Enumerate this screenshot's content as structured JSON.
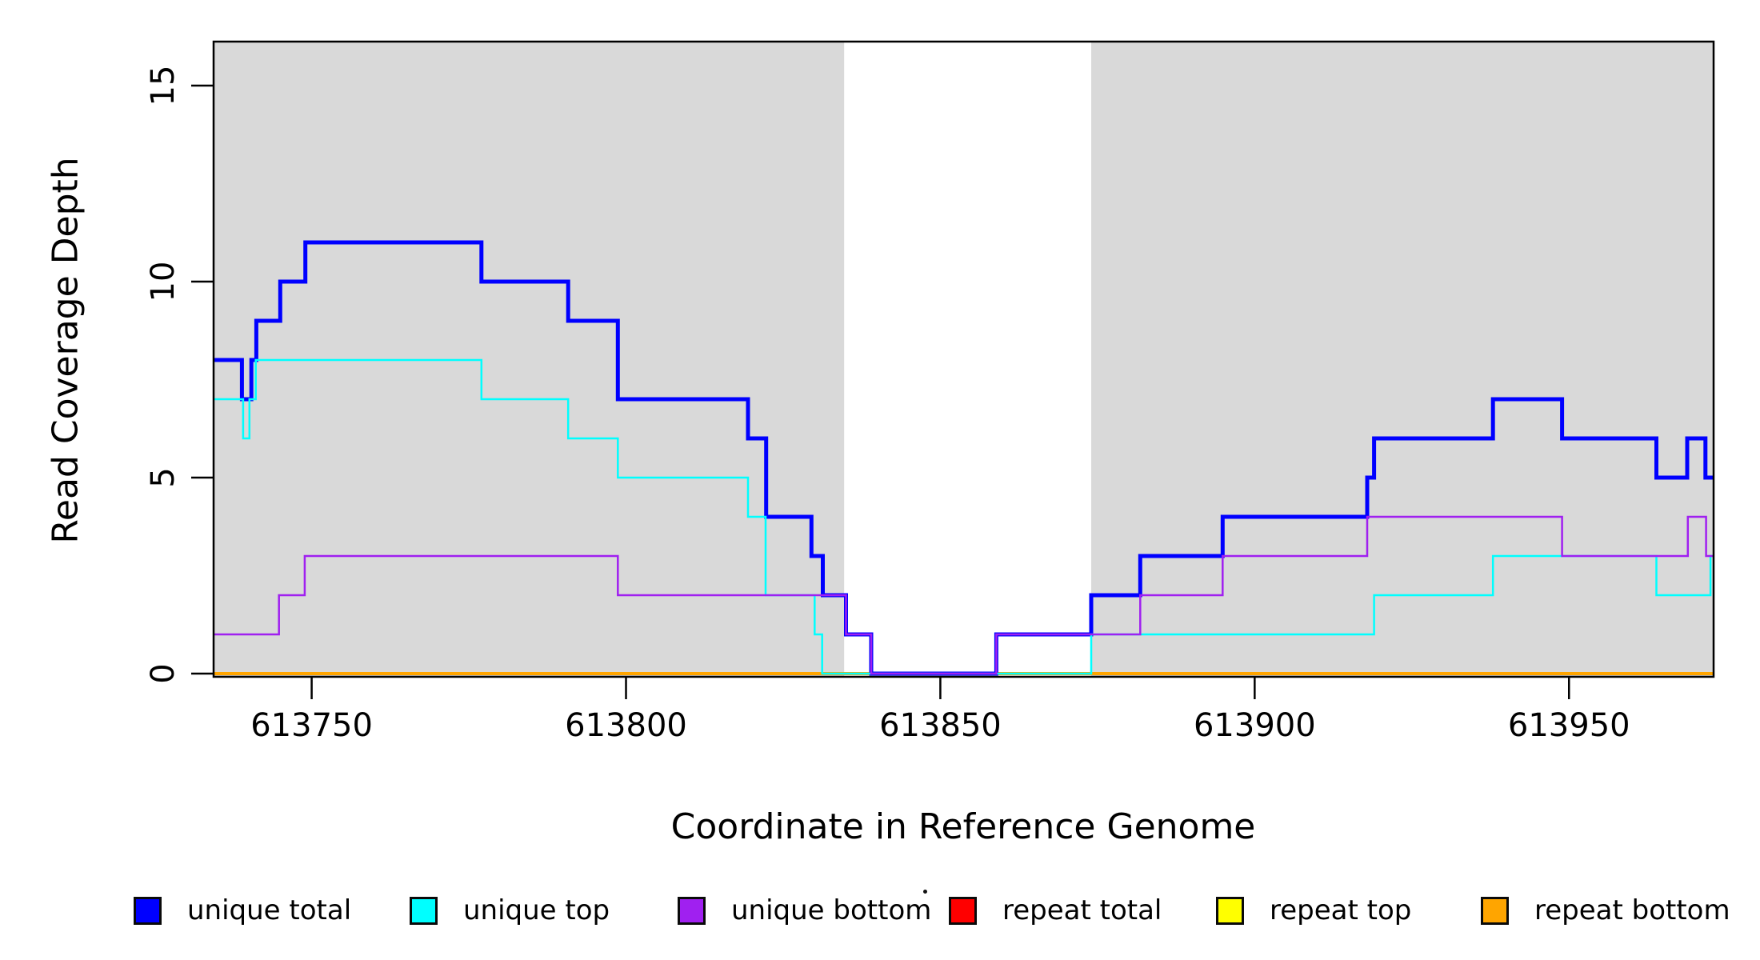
{
  "chart_data": {
    "type": "line",
    "subtype": "step-coverage-plot",
    "title": "",
    "xlabel": "Coordinate in Reference Genome",
    "ylabel": "Read Coverage Depth",
    "x_domain": [
      613734.4,
      613973.0
    ],
    "y_domain": [
      0,
      16.2
    ],
    "grid": "off",
    "x_ticks": [
      {
        "value": 613750,
        "label": "613750"
      },
      {
        "value": 613800,
        "label": "613800"
      },
      {
        "value": 613850,
        "label": "613850"
      },
      {
        "value": 613900,
        "label": "613900"
      },
      {
        "value": 613950,
        "label": "613950"
      }
    ],
    "y_ticks": [
      {
        "value": 0,
        "label": "0"
      },
      {
        "value": 5,
        "label": "5"
      },
      {
        "value": 10,
        "label": "10"
      },
      {
        "value": 15,
        "label": "15"
      }
    ],
    "shaded_regions": {
      "color": "#d9d9d9",
      "note": "unique-mappability regions; white gap is repeat region",
      "ranges": [
        [
          613734.4,
          613834.7
        ],
        [
          613874.0,
          613973.0
        ]
      ]
    },
    "series_draw_order": [
      {
        "name": "repeat total",
        "color": "#ff0000",
        "width": 3,
        "steps": [
          [
            613734.4,
            0
          ]
        ]
      },
      {
        "name": "repeat top",
        "color": "#ffff00",
        "width": 3,
        "steps": [
          [
            613734.4,
            0
          ]
        ]
      },
      {
        "name": "repeat bottom",
        "color": "#ffa500",
        "width": 4,
        "steps": [
          [
            613734.4,
            0
          ]
        ]
      },
      {
        "name": "unique total",
        "color": "#0000ff",
        "width": 5,
        "steps": [
          [
            613734.4,
            8
          ],
          [
            613738.9,
            7
          ],
          [
            613740.4,
            8
          ],
          [
            613741.2,
            9
          ],
          [
            613745,
            10
          ],
          [
            613749,
            11
          ],
          [
            613777,
            10
          ],
          [
            613790.8,
            9
          ],
          [
            613798.7,
            7
          ],
          [
            613819.4,
            6
          ],
          [
            613822.3,
            4
          ],
          [
            613829.5,
            3
          ],
          [
            613831.3,
            2
          ],
          [
            613835,
            1
          ],
          [
            613839,
            0
          ],
          [
            613858.9,
            1
          ],
          [
            613874,
            2
          ],
          [
            613881.8,
            3
          ],
          [
            613894.9,
            4
          ],
          [
            613917.9,
            5
          ],
          [
            613919,
            6
          ],
          [
            613937.9,
            7
          ],
          [
            613948.9,
            6
          ],
          [
            613963.9,
            5
          ],
          [
            613968.8,
            6
          ],
          [
            613971.7,
            5
          ]
        ]
      },
      {
        "name": "unique top",
        "color": "#00ffff",
        "width": 2.5,
        "steps": [
          [
            613734.4,
            7
          ],
          [
            613739.1,
            6
          ],
          [
            613740.1,
            7
          ],
          [
            613741.1,
            8
          ],
          [
            613777,
            7
          ],
          [
            613790.8,
            6
          ],
          [
            613798.7,
            5
          ],
          [
            613819.4,
            4
          ],
          [
            613822.2,
            2
          ],
          [
            613830,
            1
          ],
          [
            613831.2,
            0
          ],
          [
            613874,
            1
          ],
          [
            613919,
            2
          ],
          [
            613937.9,
            3
          ],
          [
            613963.9,
            2
          ],
          [
            613972.5,
            3
          ]
        ]
      },
      {
        "name": "unique bottom",
        "color": "#a020f0",
        "width": 2.5,
        "steps": [
          [
            613734.4,
            1
          ],
          [
            613744.8,
            2
          ],
          [
            613748.9,
            3
          ],
          [
            613798.7,
            2
          ],
          [
            613835,
            1
          ],
          [
            613839,
            0
          ],
          [
            613858.9,
            1
          ],
          [
            613881.8,
            2
          ],
          [
            613894.9,
            3
          ],
          [
            613917.9,
            4
          ],
          [
            613948.9,
            3
          ],
          [
            613968.9,
            4
          ],
          [
            613971.8,
            3
          ]
        ]
      }
    ],
    "legend_position": "bottom"
  },
  "axis_titles": {
    "x": "Coordinate in Reference Genome",
    "y": "Read Coverage Depth"
  },
  "legend": {
    "items": [
      {
        "label": "unique total",
        "color": "#0000ff"
      },
      {
        "label": "unique top",
        "color": "#00ffff"
      },
      {
        "label": "unique bottom",
        "color": "#a020f0"
      },
      {
        "label": "repeat total",
        "color": "#ff0000"
      },
      {
        "label": "repeat top",
        "color": "#ffff00"
      },
      {
        "label": "repeat bottom",
        "color": "#ffa500"
      }
    ]
  },
  "colors": {
    "plot_shade": "#d9d9d9",
    "axis": "#000000",
    "background": "#ffffff"
  }
}
